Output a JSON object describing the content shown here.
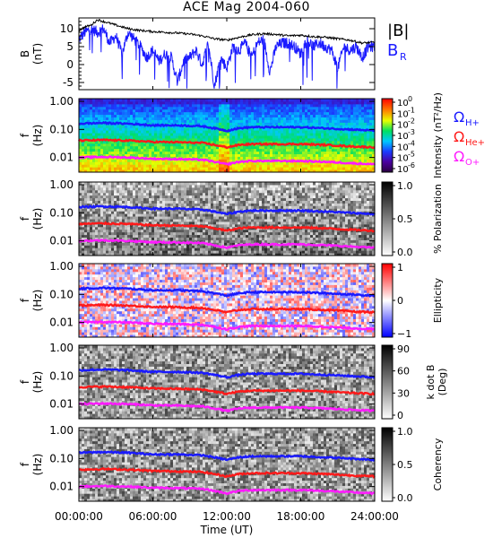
{
  "chart_data": {
    "title": "ACE Mag 2004-060",
    "type": "heatmap",
    "xlabel": "Time (UT)",
    "x_tick_labels": [
      "00:00:00",
      "06:00:00",
      "12:00:00",
      "18:00:00",
      "24:00:00"
    ],
    "x_ticks_hours": [
      0,
      6,
      12,
      18,
      24
    ],
    "panels": [
      {
        "id": "field",
        "type": "line",
        "ylabel": [
          "B",
          "(nT)"
        ],
        "yticks": [
          -5,
          0,
          5,
          10
        ],
        "ylim": [
          -7,
          13
        ],
        "legend": [
          {
            "label": "|B|",
            "color": "#000000"
          },
          {
            "label": "B",
            "sub": "R",
            "color": "#1a1aff"
          }
        ],
        "series": [
          {
            "name": "|B|",
            "color": "#000000",
            "x": [
              0,
              0.5,
              1,
              1.5,
              2,
              2.5,
              3,
              3.5,
              4,
              5,
              6,
              7,
              8,
              9,
              10,
              11,
              12,
              13,
              14,
              15,
              16,
              17,
              18,
              19,
              20,
              21,
              22,
              23,
              24
            ],
            "y": [
              9.5,
              10.5,
              11.0,
              12.5,
              12.0,
              11.5,
              11.0,
              10.5,
              10.0,
              9.5,
              9.2,
              9.0,
              8.8,
              8.5,
              8.0,
              7.2,
              6.8,
              7.6,
              8.3,
              8.6,
              8.4,
              8.0,
              8.2,
              7.8,
              7.6,
              7.2,
              6.8,
              6.0,
              6.2
            ]
          },
          {
            "name": "BR",
            "color": "#1a1aff",
            "x": [
              0,
              0.5,
              1,
              1.5,
              2,
              2.5,
              3,
              3.5,
              4,
              4.5,
              5,
              5.5,
              6,
              6.5,
              7,
              7.5,
              8,
              8.5,
              9,
              9.5,
              10,
              10.5,
              11,
              11.5,
              12,
              12.5,
              13,
              13.5,
              14,
              14.5,
              15,
              15.5,
              16,
              16.5,
              17,
              17.5,
              18,
              18.5,
              19,
              19.5,
              20,
              20.5,
              21,
              21.5,
              22,
              22.5,
              23,
              23.5,
              24
            ],
            "y": [
              7,
              9,
              10,
              9,
              10,
              6,
              8,
              3,
              9,
              7,
              5,
              2,
              4,
              1,
              3,
              2,
              -5,
              1,
              2,
              4,
              0,
              6,
              -6,
              2,
              -1,
              5,
              4,
              6,
              2,
              6,
              7,
              -2,
              5,
              6,
              6,
              5,
              3,
              7,
              5,
              6,
              5,
              4,
              -1,
              5,
              4,
              5,
              2,
              5,
              5
            ]
          }
        ]
      },
      {
        "id": "intensity",
        "ylabel": [
          "f",
          "(Hz)"
        ],
        "colorbar": {
          "label": "Intensity (nT²/Hz)",
          "scale": "log",
          "tick_labels": [
            "10^0",
            "10^-1",
            "10^-2",
            "10^-3",
            "10^-4",
            "10^-5",
            "10^-6"
          ]
        },
        "side_labels": [
          {
            "label": "Ω",
            "sub": "H+",
            "color": "#1a1aff"
          },
          {
            "label": "Ω",
            "sub": "He+",
            "color": "#ff1a1a"
          },
          {
            "label": "Ω",
            "sub": "O+",
            "color": "#ff1aff"
          }
        ]
      },
      {
        "id": "polarization",
        "ylabel": [
          "f",
          "(Hz)"
        ],
        "colorbar": {
          "label": "% Polarization",
          "tick_labels": [
            "1.0",
            "0.5",
            "0.0"
          ]
        }
      },
      {
        "id": "ellipticity",
        "ylabel": [
          "f",
          "(Hz)"
        ],
        "colorbar": {
          "label": "Ellipticity",
          "tick_labels": [
            "1",
            "0",
            "−1"
          ]
        }
      },
      {
        "id": "kdotb",
        "ylabel": [
          "f",
          "(Hz)"
        ],
        "colorbar": {
          "label": "k dot B (Deg)",
          "label_lines": [
            "k dot B",
            "(Deg)"
          ],
          "tick_labels": [
            "90",
            "60",
            "30",
            "0"
          ]
        }
      },
      {
        "id": "coherency",
        "ylabel": [
          "f",
          "(Hz)"
        ],
        "colorbar": {
          "label": "Coherency",
          "tick_labels": [
            "1.0",
            "0.5",
            "0.0"
          ]
        }
      }
    ],
    "spectrogram_yaxis": {
      "scale": "log",
      "ylim": [
        0.003,
        1.25
      ],
      "tick_labels": [
        "1.00",
        "0.10",
        "0.01"
      ],
      "tick_values": [
        1.0,
        0.1,
        0.01
      ]
    },
    "gyrofrequency_lines": [
      {
        "name": "ΩH+",
        "color": "#1a1aff",
        "x": [
          0,
          2,
          4,
          6,
          8,
          10,
          11,
          12,
          13,
          14,
          16,
          18,
          20,
          22,
          24
        ],
        "y": [
          0.16,
          0.17,
          0.16,
          0.14,
          0.14,
          0.13,
          0.11,
          0.09,
          0.11,
          0.12,
          0.12,
          0.12,
          0.11,
          0.1,
          0.09
        ]
      },
      {
        "name": "ΩHe+",
        "color": "#ff1a1a",
        "x": [
          0,
          2,
          4,
          6,
          8,
          10,
          11,
          12,
          13,
          14,
          16,
          18,
          20,
          22,
          24
        ],
        "y": [
          0.04,
          0.042,
          0.04,
          0.036,
          0.035,
          0.033,
          0.028,
          0.023,
          0.028,
          0.03,
          0.03,
          0.03,
          0.028,
          0.025,
          0.023
        ]
      },
      {
        "name": "ΩO+",
        "color": "#ff1aff",
        "x": [
          0,
          2,
          4,
          6,
          8,
          10,
          11,
          12,
          13,
          14,
          16,
          18,
          20,
          22,
          24
        ],
        "y": [
          0.01,
          0.0105,
          0.01,
          0.009,
          0.0088,
          0.0083,
          0.007,
          0.0057,
          0.007,
          0.0075,
          0.0075,
          0.0075,
          0.007,
          0.0063,
          0.0057
        ]
      }
    ]
  }
}
